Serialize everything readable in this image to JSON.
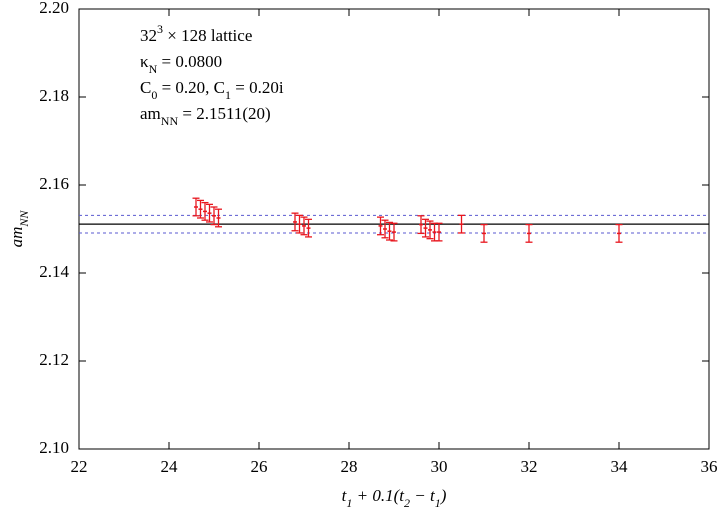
{
  "chart_data": {
    "type": "errorbar",
    "xlabel": "t_1 + 0.1(t_2 − t_1)",
    "ylabel": "am_NN",
    "annotations": [
      "32^3 × 128 lattice",
      "κ_N = 0.0800",
      "C_0 = 0.20, C_1 = 0.20i",
      "am_NN = 2.1511(20)"
    ],
    "xlim": [
      22,
      36
    ],
    "xticks": [
      22,
      24,
      26,
      28,
      30,
      32,
      34,
      36
    ],
    "ylim": [
      2.1,
      2.2
    ],
    "yticks": [
      {
        "value": 2.1,
        "label": "2.10"
      },
      {
        "value": 2.12,
        "label": "2.12"
      },
      {
        "value": 2.14,
        "label": "2.14"
      },
      {
        "value": 2.16,
        "label": "2.16"
      },
      {
        "value": 2.18,
        "label": "2.18"
      },
      {
        "value": 2.2,
        "label": "2.20"
      }
    ],
    "series": [
      {
        "color": "#e8161e",
        "x": [
          24.6,
          24.7,
          24.8,
          24.9,
          25.0,
          25.1,
          26.8,
          26.9,
          27.0,
          27.1,
          28.7,
          28.8,
          28.9,
          29.0,
          29.6,
          29.7,
          29.8,
          29.9,
          30.0,
          30.5,
          31,
          32,
          34
        ],
        "values": [
          2.155,
          2.1545,
          2.154,
          2.1536,
          2.153,
          2.1525,
          2.1516,
          2.1511,
          2.1507,
          2.1502,
          2.1507,
          2.15,
          2.1495,
          2.1493,
          2.151,
          2.1502,
          2.1498,
          2.1493,
          2.1493,
          2.1511,
          2.149,
          2.149,
          2.149
        ],
        "errors": [
          0.002,
          0.002,
          0.002,
          0.002,
          0.002,
          0.002,
          0.002,
          0.002,
          0.002,
          0.002,
          0.002,
          0.002,
          0.002,
          0.002,
          0.002,
          0.002,
          0.002,
          0.002,
          0.002,
          0.002,
          0.002,
          0.002,
          0.002
        ]
      }
    ],
    "fit": {
      "value": 2.1511,
      "error": 0.002,
      "color": "#000000",
      "band_color": "#5a5ad0"
    }
  }
}
